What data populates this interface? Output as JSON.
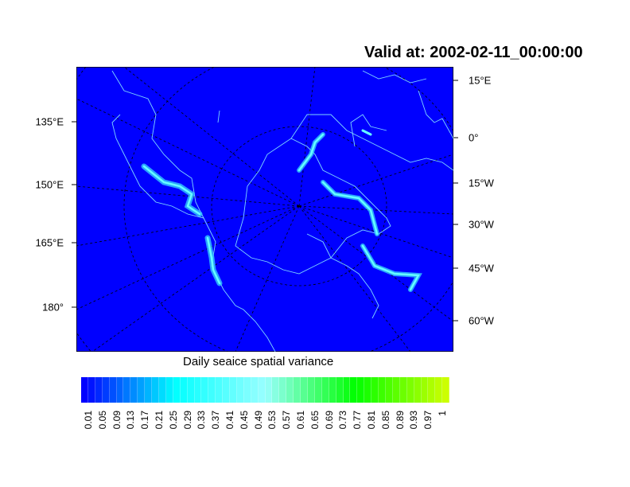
{
  "title": "Valid at: 2002-02-11_00:00:00",
  "map": {
    "projection": "polar stereographic",
    "background_color": "#0000ff",
    "coastline_color": "#7fd8ff",
    "gridline_style": "dashed",
    "left_labels": [
      "135°E",
      "150°E",
      "165°E",
      "180°"
    ],
    "right_labels": [
      "15°E",
      "0°",
      "15°W",
      "30°W",
      "45°W",
      "60°W"
    ]
  },
  "colorbar": {
    "title": "Daily seaice spatial variance",
    "labels": [
      "0.01",
      "0.05",
      "0.09",
      "0.13",
      "0.17",
      "0.21",
      "0.25",
      "0.29",
      "0.33",
      "0.37",
      "0.41",
      "0.45",
      "0.49",
      "0.53",
      "0.57",
      "0.61",
      "0.65",
      "0.69",
      "0.73",
      "0.77",
      "0.81",
      "0.85",
      "0.89",
      "0.93",
      "0.97",
      "1"
    ],
    "colors": [
      "#0000ff",
      "#00ffff",
      "#99ffff",
      "#00ff00",
      "#ccff00"
    ]
  }
}
